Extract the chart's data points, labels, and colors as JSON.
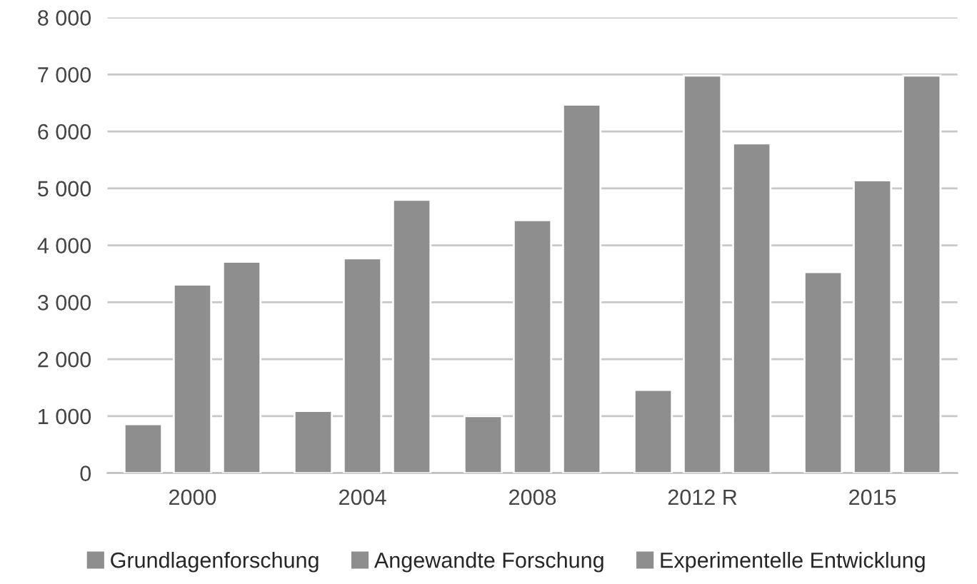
{
  "chart_data": {
    "type": "bar",
    "categories": [
      "2000",
      "2004",
      "2008",
      "2012 R",
      "2015"
    ],
    "series": [
      {
        "name": "Grundlagenforschung",
        "color": "#8e8e8e",
        "values": [
          860,
          1090,
          1000,
          1460,
          3530
        ]
      },
      {
        "name": "Angewandte Forschung",
        "color": "#8e8e8e",
        "values": [
          3310,
          3770,
          4440,
          6980,
          5140
        ]
      },
      {
        "name": "Experimentelle Entwicklung",
        "color": "#8e8e8e",
        "values": [
          3710,
          4800,
          6470,
          5790,
          6980
        ]
      }
    ],
    "ylim": [
      0,
      8000
    ],
    "yticks": [
      {
        "value": 0,
        "label": "0"
      },
      {
        "value": 1000,
        "label": "1 000"
      },
      {
        "value": 2000,
        "label": "2 000"
      },
      {
        "value": 3000,
        "label": "3 000"
      },
      {
        "value": 4000,
        "label": "4 000"
      },
      {
        "value": 5000,
        "label": "5 000"
      },
      {
        "value": 6000,
        "label": "6 000"
      },
      {
        "value": 7000,
        "label": "7 000"
      },
      {
        "value": 8000,
        "label": "8 000"
      }
    ],
    "grid": "y",
    "legend": "bottom"
  }
}
